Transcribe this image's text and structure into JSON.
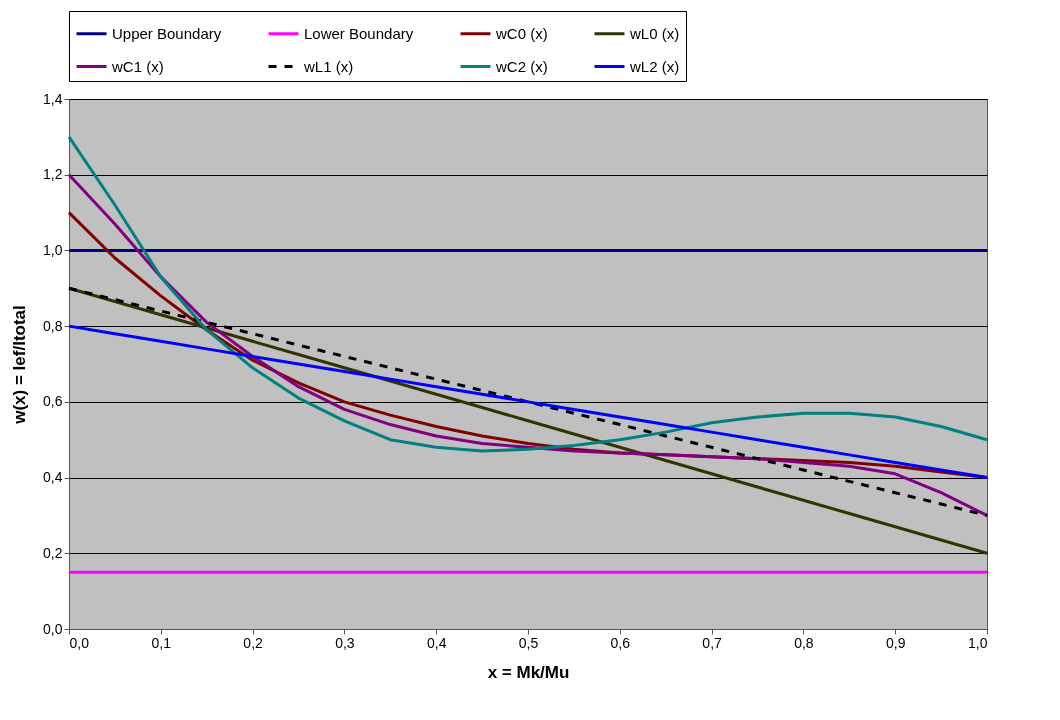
{
  "chart_data": {
    "type": "line",
    "xlabel": "x = Mk/Mu",
    "ylabel": "w(x) = Ief/Itotal",
    "x": [
      0,
      0.05,
      0.1,
      0.15,
      0.2,
      0.25,
      0.3,
      0.35,
      0.4,
      0.45,
      0.5,
      0.55,
      0.6,
      0.65,
      0.7,
      0.75,
      0.8,
      0.85,
      0.9,
      0.95,
      1.0
    ],
    "series": [
      {
        "name": "Upper Boundary",
        "color": "#000080",
        "values": [
          1.0,
          1.0,
          1.0,
          1.0,
          1.0,
          1.0,
          1.0,
          1.0,
          1.0,
          1.0,
          1.0,
          1.0,
          1.0,
          1.0,
          1.0,
          1.0,
          1.0,
          1.0,
          1.0,
          1.0,
          1.0
        ]
      },
      {
        "name": "Lower Boundary",
        "color": "#ff00ff",
        "values": [
          0.15,
          0.15,
          0.15,
          0.15,
          0.15,
          0.15,
          0.15,
          0.15,
          0.15,
          0.15,
          0.15,
          0.15,
          0.15,
          0.15,
          0.15,
          0.15,
          0.15,
          0.15,
          0.15,
          0.15,
          0.15
        ]
      },
      {
        "name": "wC0 (x)",
        "color": "#800000",
        "values": [
          1.1,
          0.98,
          0.88,
          0.79,
          0.71,
          0.65,
          0.6,
          0.565,
          0.535,
          0.51,
          0.49,
          0.475,
          0.465,
          0.46,
          0.455,
          0.45,
          0.445,
          0.44,
          0.43,
          0.415,
          0.4
        ]
      },
      {
        "name": "wL0 (x)",
        "color": "#333300",
        "values": [
          0.9,
          0.865,
          0.83,
          0.795,
          0.76,
          0.725,
          0.69,
          0.655,
          0.62,
          0.585,
          0.55,
          0.515,
          0.48,
          0.445,
          0.41,
          0.375,
          0.34,
          0.305,
          0.27,
          0.235,
          0.2
        ]
      },
      {
        "name": "wC1 (x)",
        "color": "#800080",
        "values": [
          1.2,
          1.07,
          0.93,
          0.81,
          0.72,
          0.64,
          0.58,
          0.54,
          0.51,
          0.49,
          0.48,
          0.47,
          0.465,
          0.46,
          0.455,
          0.45,
          0.44,
          0.43,
          0.41,
          0.36,
          0.3
        ]
      },
      {
        "name": "wL1 (x)",
        "color": "#000000",
        "line_style": "dashed",
        "values": [
          0.9,
          0.87,
          0.84,
          0.81,
          0.78,
          0.75,
          0.72,
          0.69,
          0.66,
          0.63,
          0.6,
          0.57,
          0.54,
          0.51,
          0.48,
          0.45,
          0.42,
          0.39,
          0.36,
          0.33,
          0.3
        ]
      },
      {
        "name": "wC2 (x)",
        "color": "#008080",
        "values": [
          1.3,
          1.12,
          0.93,
          0.79,
          0.69,
          0.61,
          0.55,
          0.5,
          0.48,
          0.47,
          0.475,
          0.485,
          0.5,
          0.52,
          0.545,
          0.56,
          0.57,
          0.57,
          0.56,
          0.535,
          0.5
        ]
      },
      {
        "name": "wL2 (x)",
        "color": "#0000ff",
        "values": [
          0.8,
          0.78,
          0.76,
          0.74,
          0.72,
          0.7,
          0.68,
          0.66,
          0.64,
          0.62,
          0.6,
          0.58,
          0.56,
          0.54,
          0.52,
          0.5,
          0.48,
          0.46,
          0.44,
          0.42,
          0.4
        ]
      }
    ],
    "xlim": [
      0,
      1.0
    ],
    "ylim": [
      0,
      1.4
    ],
    "xticks": [
      {
        "value": 0,
        "label": "0,0"
      },
      {
        "value": 0.1,
        "label": "0,1"
      },
      {
        "value": 0.2,
        "label": "0,2"
      },
      {
        "value": 0.3,
        "label": "0,3"
      },
      {
        "value": 0.4,
        "label": "0,4"
      },
      {
        "value": 0.5,
        "label": "0,5"
      },
      {
        "value": 0.6,
        "label": "0,6"
      },
      {
        "value": 0.7,
        "label": "0,7"
      },
      {
        "value": 0.8,
        "label": "0,8"
      },
      {
        "value": 0.9,
        "label": "0,9"
      },
      {
        "value": 1.0,
        "label": "1,0"
      }
    ],
    "yticks": [
      {
        "value": 0,
        "label": "0,0"
      },
      {
        "value": 0.2,
        "label": "0,2"
      },
      {
        "value": 0.4,
        "label": "0,4"
      },
      {
        "value": 0.6,
        "label": "0,6"
      },
      {
        "value": 0.8,
        "label": "0,8"
      },
      {
        "value": 1.0,
        "label": "1,0"
      },
      {
        "value": 1.2,
        "label": "1,2"
      },
      {
        "value": 1.4,
        "label": "1,4"
      }
    ],
    "grid": "y",
    "legend": "top",
    "line_style": "solid",
    "marker": "none"
  }
}
